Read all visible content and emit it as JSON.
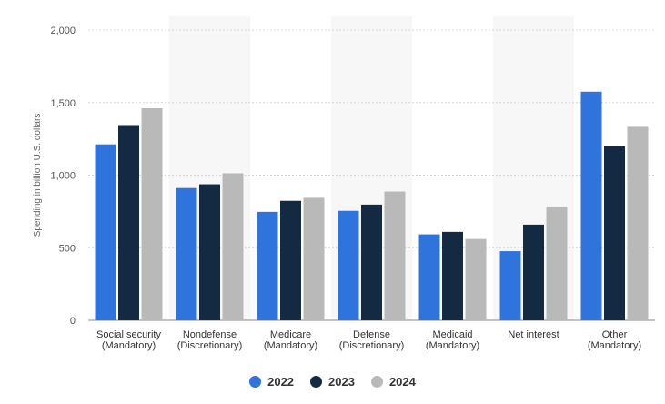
{
  "chart_data": {
    "type": "bar",
    "ylabel": "Spending in billion U.S. dollars",
    "xlabel": "",
    "ylim": [
      0,
      2000
    ],
    "yticks": [
      "0",
      "500",
      "1,000",
      "1,500",
      "2,000"
    ],
    "grid": true,
    "legend_position": "bottom-center",
    "categories": [
      [
        "Social security",
        "(Mandatory)"
      ],
      [
        "Nondefense",
        "(Discretionary)"
      ],
      [
        "Medicare",
        "(Mandatory)"
      ],
      [
        "Defense",
        "(Discretionary)"
      ],
      [
        "Medicaid",
        "(Mandatory)"
      ],
      [
        "Net interest",
        ""
      ],
      [
        "Other",
        "(Mandatory)"
      ]
    ],
    "series": [
      {
        "name": "2022",
        "color": "#2f74dc",
        "values": [
          1212,
          911,
          747,
          754,
          592,
          476,
          1575
        ]
      },
      {
        "name": "2023",
        "color": "#132a42",
        "values": [
          1345,
          937,
          823,
          797,
          609,
          659,
          1200
        ]
      },
      {
        "name": "2024",
        "color": "#b9b9b9",
        "values": [
          1461,
          1013,
          844,
          887,
          560,
          784,
          1333
        ]
      }
    ]
  }
}
